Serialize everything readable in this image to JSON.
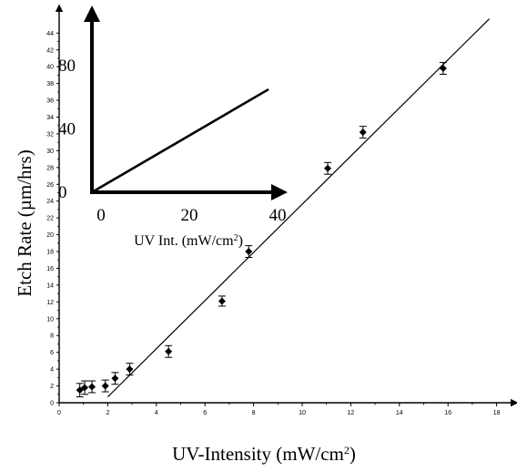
{
  "chart_data": [
    {
      "type": "scatter",
      "title": "",
      "xlabel": "UV-Intensity (mW/cm",
      "xlabel_sup": "2",
      "xlabel_end": ")",
      "ylabel": "Etch Rate (µm/hrs)",
      "xlim": [
        0,
        18.5
      ],
      "ylim": [
        0,
        46
      ],
      "xticks": [
        "0",
        "2",
        "4",
        "6",
        "8",
        "10",
        "12",
        "14",
        "16",
        "18"
      ],
      "yticks": [
        "0",
        "2",
        "4",
        "6",
        "8",
        "10",
        "12",
        "14",
        "16",
        "18",
        "20",
        "22",
        "24",
        "26",
        "28",
        "30",
        "32",
        "34",
        "36",
        "38",
        "40",
        "42",
        "44"
      ],
      "grid": false,
      "series": [
        {
          "points": [
            {
              "x": 0.85,
              "y": 1.5,
              "err": 0.8
            },
            {
              "x": 1.05,
              "y": 1.8,
              "err": 0.8
            },
            {
              "x": 1.35,
              "y": 1.9,
              "err": 0.7
            },
            {
              "x": 1.9,
              "y": 2.0,
              "err": 0.7
            },
            {
              "x": 2.3,
              "y": 2.9,
              "err": 0.7
            },
            {
              "x": 2.9,
              "y": 4.0,
              "err": 0.7
            },
            {
              "x": 4.5,
              "y": 6.1,
              "err": 0.7
            },
            {
              "x": 6.7,
              "y": 12.1,
              "err": 0.6
            },
            {
              "x": 7.8,
              "y": 18.0,
              "err": 0.7
            },
            {
              "x": 11.05,
              "y": 27.9,
              "err": 0.7
            },
            {
              "x": 12.5,
              "y": 32.2,
              "err": 0.7
            },
            {
              "x": 15.8,
              "y": 39.8,
              "err": 0.7
            }
          ]
        }
      ],
      "fit_line": {
        "x": [
          2.0,
          17.7
        ],
        "y": [
          0.7,
          45.7
        ]
      }
    },
    {
      "type": "line",
      "title": "",
      "xlabel": "UV Int. (mW/cm",
      "xlabel_sup": "2",
      "xlabel_end": ")",
      "ylabel": "",
      "xlim": [
        0,
        40
      ],
      "ylim": [
        0,
        80
      ],
      "xticks": [
        "0",
        "20",
        "40"
      ],
      "yticks": [
        "0",
        "40",
        "80"
      ],
      "series": [
        {
          "x": [
            0,
            40
          ],
          "y": [
            0,
            65
          ]
        }
      ]
    }
  ]
}
